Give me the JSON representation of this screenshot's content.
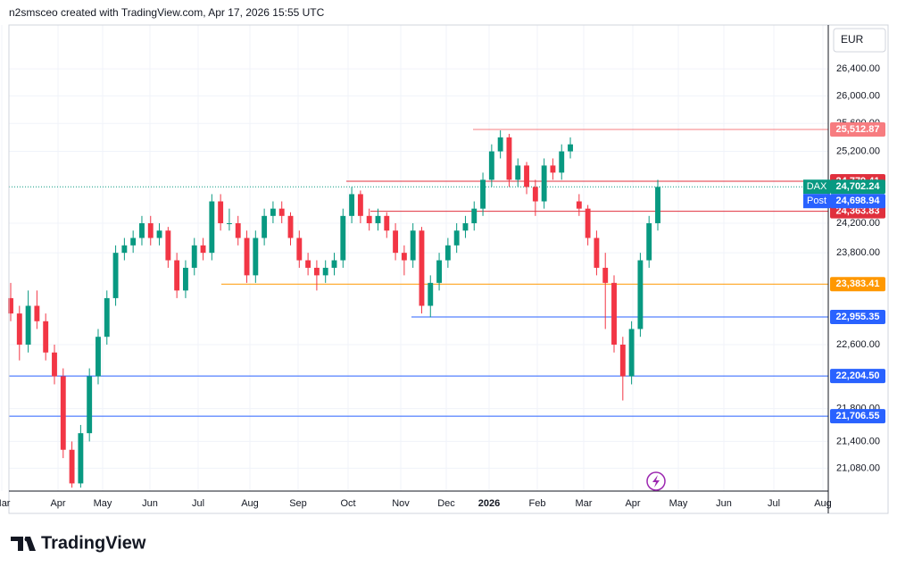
{
  "header": {
    "text": "n2smsceo created with TradingView.com, Apr 17, 2026 15:55 UTC"
  },
  "brand": {
    "name": "TradingView"
  },
  "chart_data": {
    "type": "candlestick",
    "currency": "EUR",
    "log_scale": true,
    "ylim": [
      20810,
      27060
    ],
    "yticks": [
      {
        "value": 26400,
        "label": "26,400.00"
      },
      {
        "value": 26000,
        "label": "26,000.00"
      },
      {
        "value": 25600,
        "label": "25,600.00"
      },
      {
        "value": 25200,
        "label": "25,200.00"
      },
      {
        "value": 24200,
        "label": "24,200.00"
      },
      {
        "value": 23800,
        "label": "23,800.00"
      },
      {
        "value": 22600,
        "label": "22,600.00"
      },
      {
        "value": 21800,
        "label": "21,800.00"
      },
      {
        "value": 21400,
        "label": "21,400.00"
      },
      {
        "value": 21080,
        "label": "21,080.00"
      }
    ],
    "xticks": [
      "Mar",
      "Apr",
      "May",
      "Jun",
      "Jul",
      "Aug",
      "Sep",
      "Oct",
      "Nov",
      "Dec",
      "2026",
      "Feb",
      "Mar",
      "Apr",
      "May",
      "Jun",
      "Jul",
      "Aug"
    ],
    "up_color": "#089981",
    "down_color": "#f23645",
    "symbol": "DAX",
    "last": {
      "value": 24702.24,
      "label": "24,702.24",
      "color": "#089981"
    },
    "post": {
      "name": "Post",
      "value": 24698.94,
      "label": "24,698.94",
      "color": "#2962ff"
    },
    "levels": [
      {
        "value": 25512.87,
        "label": "25,512.87",
        "color": "#f77c80"
      },
      {
        "value": 24779.41,
        "label": "24,779.41",
        "color": "#e0303d"
      },
      {
        "value": 24363.83,
        "label": "24,363.83",
        "color": "#e0303d"
      },
      {
        "value": 23383.41,
        "label": "23,383.41",
        "color": "#ff9800"
      },
      {
        "value": 22955.35,
        "label": "22,955.35",
        "color": "#2962ff"
      },
      {
        "value": 22204.5,
        "label": "22,204.50",
        "color": "#2962ff"
      },
      {
        "value": 21706.55,
        "label": "21,706.55",
        "color": "#2962ff"
      }
    ],
    "candles": [
      [
        23200,
        23400,
        22900,
        23000
      ],
      [
        23000,
        23100,
        22400,
        22600
      ],
      [
        22600,
        23300,
        22500,
        23100
      ],
      [
        23100,
        23300,
        22800,
        22900
      ],
      [
        22900,
        23000,
        22400,
        22500
      ],
      [
        22500,
        22600,
        22100,
        22200
      ],
      [
        22200,
        22300,
        21200,
        21300
      ],
      [
        21300,
        21400,
        20850,
        20900
      ],
      [
        20900,
        21600,
        20850,
        21500
      ],
      [
        21500,
        22300,
        21400,
        22200
      ],
      [
        22200,
        22800,
        22100,
        22700
      ],
      [
        22700,
        23300,
        22600,
        23200
      ],
      [
        23200,
        23900,
        23100,
        23800
      ],
      [
        23800,
        24000,
        23700,
        23900
      ],
      [
        23900,
        24100,
        23800,
        24000
      ],
      [
        24000,
        24300,
        23900,
        24200
      ],
      [
        24200,
        24300,
        23900,
        24000
      ],
      [
        24000,
        24200,
        23900,
        24100
      ],
      [
        24100,
        24150,
        23600,
        23700
      ],
      [
        23700,
        23800,
        23200,
        23300
      ],
      [
        23300,
        23700,
        23200,
        23600
      ],
      [
        23600,
        24000,
        23500,
        23900
      ],
      [
        23900,
        24000,
        23700,
        23800
      ],
      [
        23800,
        24600,
        23700,
        24500
      ],
      [
        24500,
        24600,
        24100,
        24200
      ],
      [
        24200,
        24400,
        24100,
        24200
      ],
      [
        24200,
        24300,
        23900,
        24000
      ],
      [
        24000,
        24100,
        23400,
        23500
      ],
      [
        23500,
        24100,
        23400,
        24000
      ],
      [
        24000,
        24400,
        23900,
        24300
      ],
      [
        24300,
        24500,
        24200,
        24400
      ],
      [
        24400,
        24500,
        24200,
        24300
      ],
      [
        24300,
        24350,
        23900,
        24000
      ],
      [
        24000,
        24100,
        23600,
        23700
      ],
      [
        23700,
        23800,
        23500,
        23600
      ],
      [
        23600,
        23700,
        23300,
        23500
      ],
      [
        23500,
        23700,
        23400,
        23600
      ],
      [
        23600,
        23800,
        23500,
        23700
      ],
      [
        23700,
        24400,
        23600,
        24300
      ],
      [
        24300,
        24700,
        24200,
        24600
      ],
      [
        24600,
        24650,
        24200,
        24300
      ],
      [
        24300,
        24400,
        24100,
        24200
      ],
      [
        24200,
        24400,
        24100,
        24300
      ],
      [
        24300,
        24350,
        24000,
        24100
      ],
      [
        24100,
        24200,
        23700,
        23800
      ],
      [
        23800,
        23900,
        23500,
        23700
      ],
      [
        23700,
        24200,
        23600,
        24100
      ],
      [
        24100,
        24150,
        23000,
        23100
      ],
      [
        23100,
        23500,
        22950,
        23400
      ],
      [
        23400,
        23800,
        23300,
        23700
      ],
      [
        23700,
        24000,
        23600,
        23900
      ],
      [
        23900,
        24200,
        23800,
        24100
      ],
      [
        24100,
        24300,
        24000,
        24200
      ],
      [
        24200,
        24500,
        24100,
        24400
      ],
      [
        24400,
        24900,
        24300,
        24800
      ],
      [
        24800,
        25300,
        24700,
        25200
      ],
      [
        25200,
        25500,
        25100,
        25400
      ],
      [
        25400,
        25450,
        24700,
        24800
      ],
      [
        24800,
        25100,
        24700,
        25000
      ],
      [
        25000,
        25050,
        24600,
        24700
      ],
      [
        24700,
        24800,
        24300,
        24500
      ],
      [
        24500,
        25100,
        24400,
        25000
      ],
      [
        25000,
        25100,
        24800,
        24900
      ],
      [
        24900,
        25300,
        24800,
        25200
      ],
      [
        25200,
        25400,
        25100,
        25300
      ],
      [
        24500,
        24600,
        24300,
        24400
      ],
      [
        24400,
        24450,
        23900,
        24000
      ],
      [
        24000,
        24100,
        23500,
        23600
      ],
      [
        23600,
        23800,
        22800,
        23400
      ],
      [
        23400,
        23500,
        22500,
        22600
      ],
      [
        22600,
        22700,
        21900,
        22200
      ],
      [
        22200,
        22900,
        22100,
        22800
      ],
      [
        22800,
        23800,
        22700,
        23700
      ],
      [
        23700,
        24300,
        23600,
        24200
      ],
      [
        24200,
        24800,
        24100,
        24700
      ]
    ]
  }
}
